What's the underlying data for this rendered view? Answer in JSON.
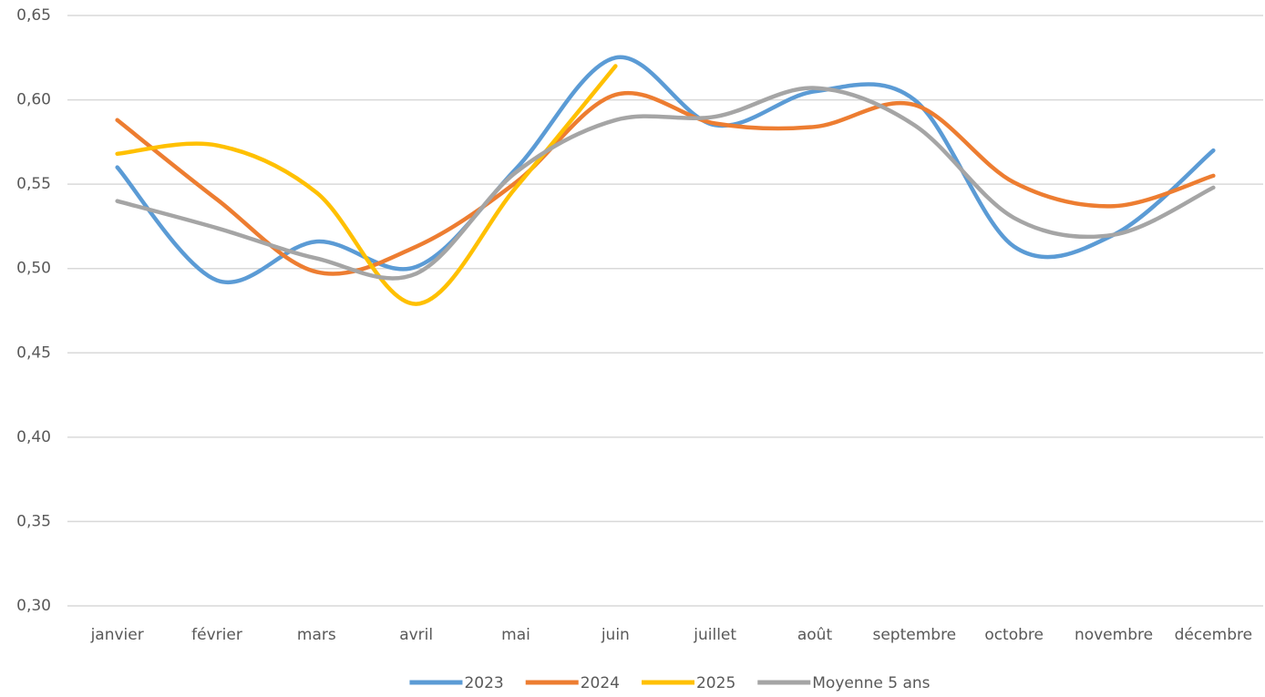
{
  "chart_data": {
    "type": "line",
    "categories": [
      "janvier",
      "février",
      "mars",
      "avril",
      "mai",
      "juin",
      "juillet",
      "août",
      "septembre",
      "octobre",
      "novembre",
      "décembre"
    ],
    "series": [
      {
        "name": "2023",
        "color": "#5b9bd5",
        "values": [
          0.56,
          0.493,
          0.516,
          0.501,
          0.559,
          0.625,
          0.585,
          0.605,
          0.6,
          0.513,
          0.52,
          0.57
        ]
      },
      {
        "name": "2024",
        "color": "#ed7d31",
        "values": [
          0.588,
          0.541,
          0.498,
          0.513,
          0.551,
          0.603,
          0.586,
          0.584,
          0.597,
          0.551,
          0.537,
          0.555
        ]
      },
      {
        "name": "2025",
        "color": "#ffc000",
        "values": [
          0.568,
          0.573,
          0.545,
          0.479,
          0.548,
          0.62,
          null,
          null,
          null,
          null,
          null,
          null
        ]
      },
      {
        "name": "Moyenne 5 ans",
        "color": "#a5a5a5",
        "values": [
          0.54,
          0.524,
          0.506,
          0.497,
          0.557,
          0.588,
          0.59,
          0.607,
          0.585,
          0.53,
          0.52,
          0.548
        ]
      }
    ],
    "ylim": [
      0.3,
      0.65
    ],
    "yticks": [
      {
        "value": 0.3,
        "label": "0,30"
      },
      {
        "value": 0.35,
        "label": "0,35"
      },
      {
        "value": 0.4,
        "label": "0,40"
      },
      {
        "value": 0.45,
        "label": "0,45"
      },
      {
        "value": 0.5,
        "label": "0,50"
      },
      {
        "value": 0.55,
        "label": "0,55"
      },
      {
        "value": 0.6,
        "label": "0,60"
      },
      {
        "value": 0.65,
        "label": "0,65"
      }
    ],
    "grid": true,
    "smooth": true,
    "legend": "bottom"
  }
}
